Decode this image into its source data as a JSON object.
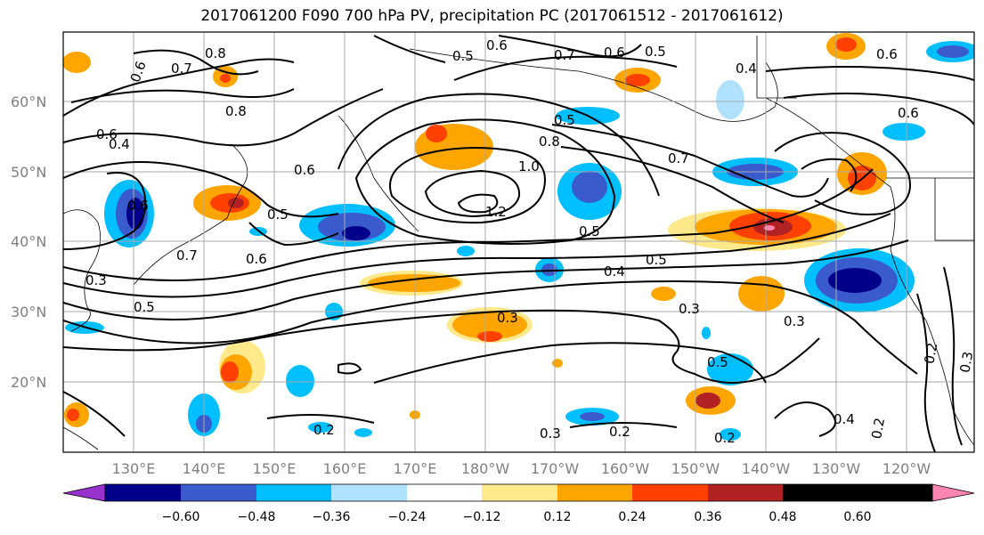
{
  "title": "2017061200 F090 700 hPa PV, precipitation PC (2017061512 - 2017061612)",
  "lat_ticks": [
    "60°N",
    "50°N",
    "40°N",
    "30°N",
    "20°N"
  ],
  "lon_ticks": [
    "130°E",
    "140°E",
    "150°E",
    "160°E",
    "170°E",
    "180°W",
    "170°W",
    "160°W",
    "150°W",
    "140°W",
    "130°W",
    "120°W"
  ],
  "colorbar": {
    "colors": [
      "#9932cc",
      "#00008b",
      "#3a5bcc",
      "#00bfff",
      "#b0e2ff",
      "#ffffff",
      "#ffe98a",
      "#ffa500",
      "#ff4000",
      "#b22222",
      "#ff85b3"
    ],
    "labels": [
      "−0.60",
      "−0.48",
      "−0.36",
      "−0.24",
      "−0.12",
      "0.12",
      "0.24",
      "0.36",
      "0.48",
      "0.60"
    ]
  },
  "contour_labels": [
    "0.8",
    "0.6",
    "0.6",
    "0.7",
    "0.6",
    "0.5",
    "0.5",
    "0.4",
    "0.6",
    "0.5",
    "0.7",
    "0.6",
    "0.8",
    "0.8",
    "1.0",
    "0.6",
    "0.4",
    "0.6",
    "0.7",
    "0.6",
    "0.5",
    "1.2",
    "0.5",
    "0.5",
    "0.4",
    "0.6",
    "0.7",
    "0.3",
    "0.5",
    "0.3",
    "0.3",
    "0.3",
    "0.5",
    "0.2",
    "0.3",
    "0.2",
    "0.2",
    "0.4",
    "0.2",
    "0.3",
    "0.2"
  ]
}
